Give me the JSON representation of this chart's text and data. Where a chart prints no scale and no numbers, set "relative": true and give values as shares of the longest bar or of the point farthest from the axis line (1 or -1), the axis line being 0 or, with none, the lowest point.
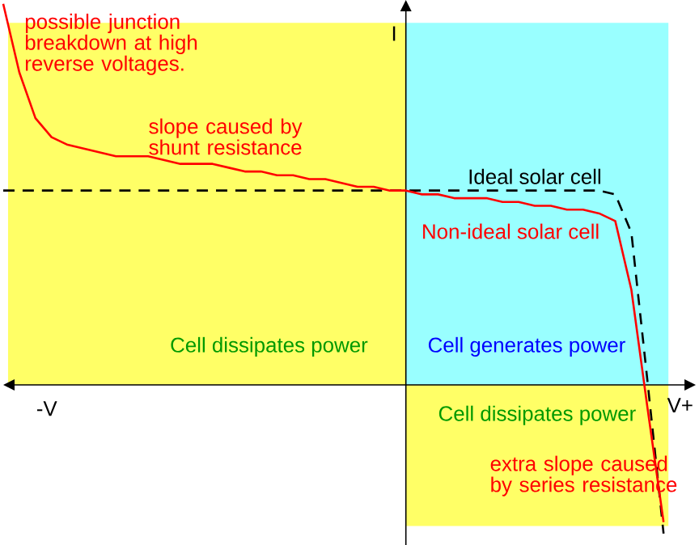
{
  "chart_data": {
    "type": "line",
    "relative": true,
    "xlabel": "V+",
    "ylabel": "I",
    "categories": [
      null,
      null,
      null,
      null,
      null,
      null,
      null,
      null,
      null,
      null,
      null,
      null,
      null,
      null,
      null,
      null,
      null,
      null,
      null,
      null,
      null,
      null,
      null,
      null,
      null,
      null,
      null,
      null,
      null,
      null,
      null,
      null,
      null,
      null,
      null,
      null,
      null,
      null,
      null,
      null,
      null,
      null,
      null,
      null
    ],
    "series": [
      {
        "name": "Ideal solar cell",
        "color": "#000000",
        "line_style": "dashed",
        "values": [
          0.51,
          0.51,
          0.51,
          0.51,
          0.51,
          0.51,
          0.51,
          0.51,
          0.51,
          0.51,
          0.51,
          0.51,
          0.51,
          0.51,
          0.51,
          0.51,
          0.51,
          0.51,
          0.51,
          0.51,
          0.51,
          0.51,
          0.51,
          0.51,
          0.51,
          0.51,
          0.51,
          0.51,
          0.51,
          0.51,
          0.51,
          0.51,
          0.51,
          0.51,
          0.51,
          0.51,
          0.51,
          0.51,
          0.5,
          0.4,
          0.01,
          -0.39,
          null,
          null
        ]
      },
      {
        "name": "Non-ideal solar cell",
        "color": "#ff0000",
        "line_style": "solid",
        "values": [
          1.0,
          0.82,
          0.7,
          0.65,
          0.63,
          0.62,
          0.61,
          0.6,
          0.6,
          0.6,
          0.59,
          0.58,
          0.58,
          0.58,
          0.57,
          0.56,
          0.56,
          0.55,
          0.55,
          0.54,
          0.54,
          0.53,
          0.52,
          0.52,
          0.51,
          0.51,
          0.5,
          0.5,
          0.49,
          0.49,
          0.49,
          0.48,
          0.48,
          0.47,
          0.47,
          0.46,
          0.46,
          0.45,
          0.43,
          0.25,
          -0.06,
          -0.36,
          null,
          null
        ]
      }
    ],
    "bands": [
      {
        "axis": "y",
        "from": -0.37,
        "to": 0,
        "color": "#ffff66",
        "label": "Cell dissipates power"
      }
    ],
    "annotations": [
      "possible junction breakdown at high reverse voltages.",
      "slope caused by shunt resistance",
      "extra slope caused by series resistance",
      "-V",
      "Cell dissipates power",
      "Cell generates power"
    ],
    "marker": "none"
  }
}
